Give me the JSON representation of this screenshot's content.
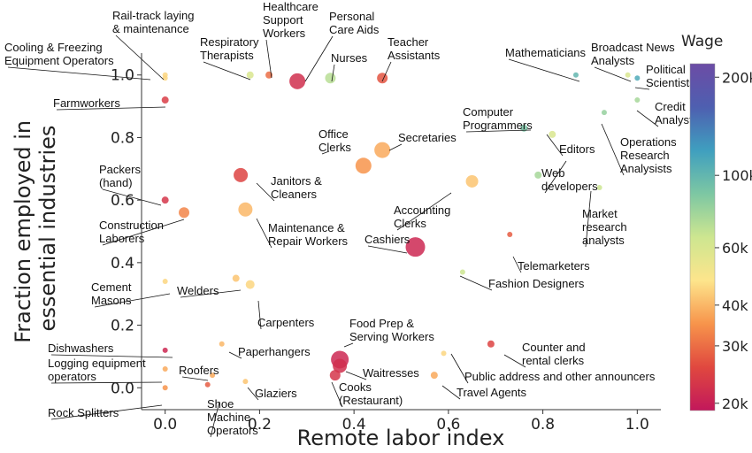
{
  "chart_data": {
    "type": "scatter",
    "xlabel": "Remote labor index",
    "ylabel": [
      "Fraction employed in",
      "essential industries"
    ],
    "xlim": [
      -0.05,
      1.05
    ],
    "ylim": [
      -0.07,
      1.07
    ],
    "x_ticks": [
      0.0,
      0.2,
      0.4,
      0.6,
      0.8,
      1.0
    ],
    "x_tick_labels": [
      "0.0",
      "0.2",
      "0.4",
      "0.6",
      "0.8",
      "1.0"
    ],
    "y_ticks": [
      0.0,
      0.2,
      0.4,
      0.6,
      0.8,
      1.0
    ],
    "y_tick_labels": [
      "0.0",
      "0.2",
      "0.4",
      "0.6",
      "0.8",
      "1.0"
    ],
    "grid": false,
    "colorbar": {
      "title": "Wage",
      "scale": "log",
      "range": [
        19000,
        220000
      ],
      "ticks": [
        20000,
        30000,
        40000,
        60000,
        100000,
        200000
      ],
      "tick_labels": [
        "20k",
        "30k",
        "40k",
        "60k",
        "100k",
        "200k"
      ],
      "colors": [
        "#c2185b",
        "#e0483f",
        "#f7944b",
        "#fde58c",
        "#cde690",
        "#7dc7a3",
        "#3f9fbf",
        "#4e5fb0",
        "#6c4ca5"
      ]
    },
    "labeled_points": [
      {
        "label": "Cooling & Freezing\nEquipment Operators",
        "x": 0.0,
        "y": 0.99,
        "wage": 45000,
        "size": 3
      },
      {
        "label": "Rail-track laying\n& maintenance",
        "x": 0.0,
        "y": 1.0,
        "wage": 45000,
        "size": 3
      },
      {
        "label": "Farmworkers",
        "x": 0.0,
        "y": 0.92,
        "wage": 24000,
        "size": 4
      },
      {
        "label": "Respiratory\nTherapists",
        "x": 0.18,
        "y": 1.0,
        "wage": 60000,
        "size": 4
      },
      {
        "label": "Healthcare\nSupport\nWorkers",
        "x": 0.22,
        "y": 1.0,
        "wage": 30000,
        "size": 4
      },
      {
        "label": "Personal\nCare Aids",
        "x": 0.28,
        "y": 0.98,
        "wage": 22000,
        "size": 9
      },
      {
        "label": "Nurses",
        "x": 0.35,
        "y": 0.99,
        "wage": 70000,
        "size": 6
      },
      {
        "label": "Teacher\nAssistants",
        "x": 0.46,
        "y": 0.99,
        "wage": 27000,
        "size": 6
      },
      {
        "label": "Mathematicians",
        "x": 0.87,
        "y": 1.0,
        "wage": 100000,
        "size": 3
      },
      {
        "label": "Broadcast News\nAnalysts",
        "x": 0.98,
        "y": 1.0,
        "wage": 60000,
        "size": 3
      },
      {
        "label": "Political\nScientists",
        "x": 1.0,
        "y": 0.99,
        "wage": 110000,
        "size": 3
      },
      {
        "label": "Credit\nAnalysts",
        "x": 1.0,
        "y": 0.92,
        "wage": 75000,
        "size": 3
      },
      {
        "label": "Computer\nProgrammers",
        "x": 0.76,
        "y": 0.83,
        "wage": 90000,
        "size": 4
      },
      {
        "label": "Editors",
        "x": 0.82,
        "y": 0.81,
        "wage": 60000,
        "size": 4
      },
      {
        "label": "Operations\nResearch\nAnalysists",
        "x": 0.93,
        "y": 0.88,
        "wage": 80000,
        "size": 3
      },
      {
        "label": "Office\nClerks",
        "x": 0.42,
        "y": 0.71,
        "wage": 35000,
        "size": 9
      },
      {
        "label": "Secretaries",
        "x": 0.46,
        "y": 0.76,
        "wage": 38000,
        "size": 9
      },
      {
        "label": "Web\ndevelopers",
        "x": 0.79,
        "y": 0.68,
        "wage": 75000,
        "size": 4
      },
      {
        "label": "Market\nresearch\nanalysts",
        "x": 0.92,
        "y": 0.64,
        "wage": 65000,
        "size": 3
      },
      {
        "label": "Packers\n(hand)",
        "x": 0.0,
        "y": 0.6,
        "wage": 23000,
        "size": 4
      },
      {
        "label": "Janitors &\nCleaners",
        "x": 0.16,
        "y": 0.68,
        "wage": 25000,
        "size": 8
      },
      {
        "label": "Accounting\nClerks",
        "x": 0.65,
        "y": 0.66,
        "wage": 42000,
        "size": 7
      },
      {
        "label": "Construction\nLaborers",
        "x": 0.04,
        "y": 0.56,
        "wage": 33000,
        "size": 6
      },
      {
        "label": "Maintenance &\nRepair Workers",
        "x": 0.17,
        "y": 0.57,
        "wage": 40000,
        "size": 8
      },
      {
        "label": "Cashiers",
        "x": 0.53,
        "y": 0.45,
        "wage": 21000,
        "size": 11
      },
      {
        "label": "Telemarketers",
        "x": 0.73,
        "y": 0.49,
        "wage": 28000,
        "size": 3
      },
      {
        "label": "Fashion Designers",
        "x": 0.63,
        "y": 0.37,
        "wage": 65000,
        "size": 3
      },
      {
        "label": "Cement\nMasons",
        "x": 0.0,
        "y": 0.34,
        "wage": 45000,
        "size": 3
      },
      {
        "label": "Welders",
        "x": 0.15,
        "y": 0.35,
        "wage": 42000,
        "size": 4
      },
      {
        "label": "Carpenters",
        "x": 0.18,
        "y": 0.33,
        "wage": 45000,
        "size": 5
      },
      {
        "label": "Food Prep &\nServing Workers",
        "x": 0.37,
        "y": 0.09,
        "wage": 21000,
        "size": 10
      },
      {
        "label": "Dishwashers",
        "x": 0.0,
        "y": 0.12,
        "wage": 21000,
        "size": 3
      },
      {
        "label": "Paperhangers",
        "x": 0.12,
        "y": 0.14,
        "wage": 40000,
        "size": 3
      },
      {
        "label": "Counter and\nrental clerks",
        "x": 0.69,
        "y": 0.14,
        "wage": 25000,
        "size": 4
      },
      {
        "label": "Waitresses",
        "x": 0.37,
        "y": 0.07,
        "wage": 22000,
        "size": 8
      },
      {
        "label": "Logging equipment\noperators",
        "x": 0.0,
        "y": 0.06,
        "wage": 38000,
        "size": 3
      },
      {
        "label": "Roofers",
        "x": 0.1,
        "y": 0.04,
        "wage": 38000,
        "size": 3
      },
      {
        "label": "Public address and other announcers",
        "x": 0.59,
        "y": 0.11,
        "wage": 45000,
        "size": 3
      },
      {
        "label": "Glaziers",
        "x": 0.17,
        "y": 0.02,
        "wage": 42000,
        "size": 3
      },
      {
        "label": "Cooks\n(Restaurant)",
        "x": 0.36,
        "y": 0.04,
        "wage": 23000,
        "size": 6
      },
      {
        "label": "Travel Agents",
        "x": 0.57,
        "y": 0.04,
        "wage": 38000,
        "size": 4
      },
      {
        "label": "Shoe\nMachine\nOperators",
        "x": 0.09,
        "y": 0.01,
        "wage": 28000,
        "size": 3
      },
      {
        "label": "Rock Splitters",
        "x": 0.0,
        "y": 0.0,
        "wage": 35000,
        "size": 3
      }
    ]
  }
}
